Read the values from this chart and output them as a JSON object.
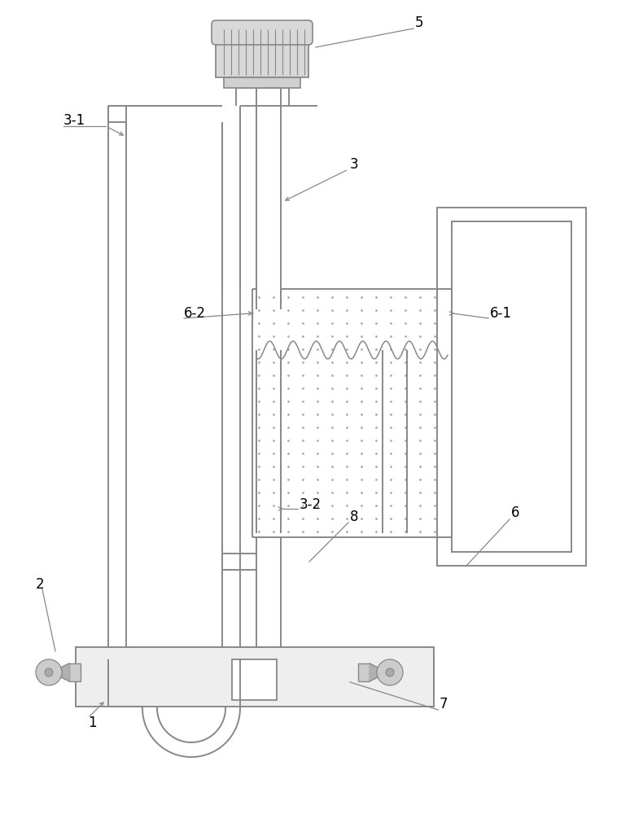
{
  "lc": "#888888",
  "lw": 1.4,
  "fig_w": 7.74,
  "fig_h": 10.0,
  "dpi": 100
}
